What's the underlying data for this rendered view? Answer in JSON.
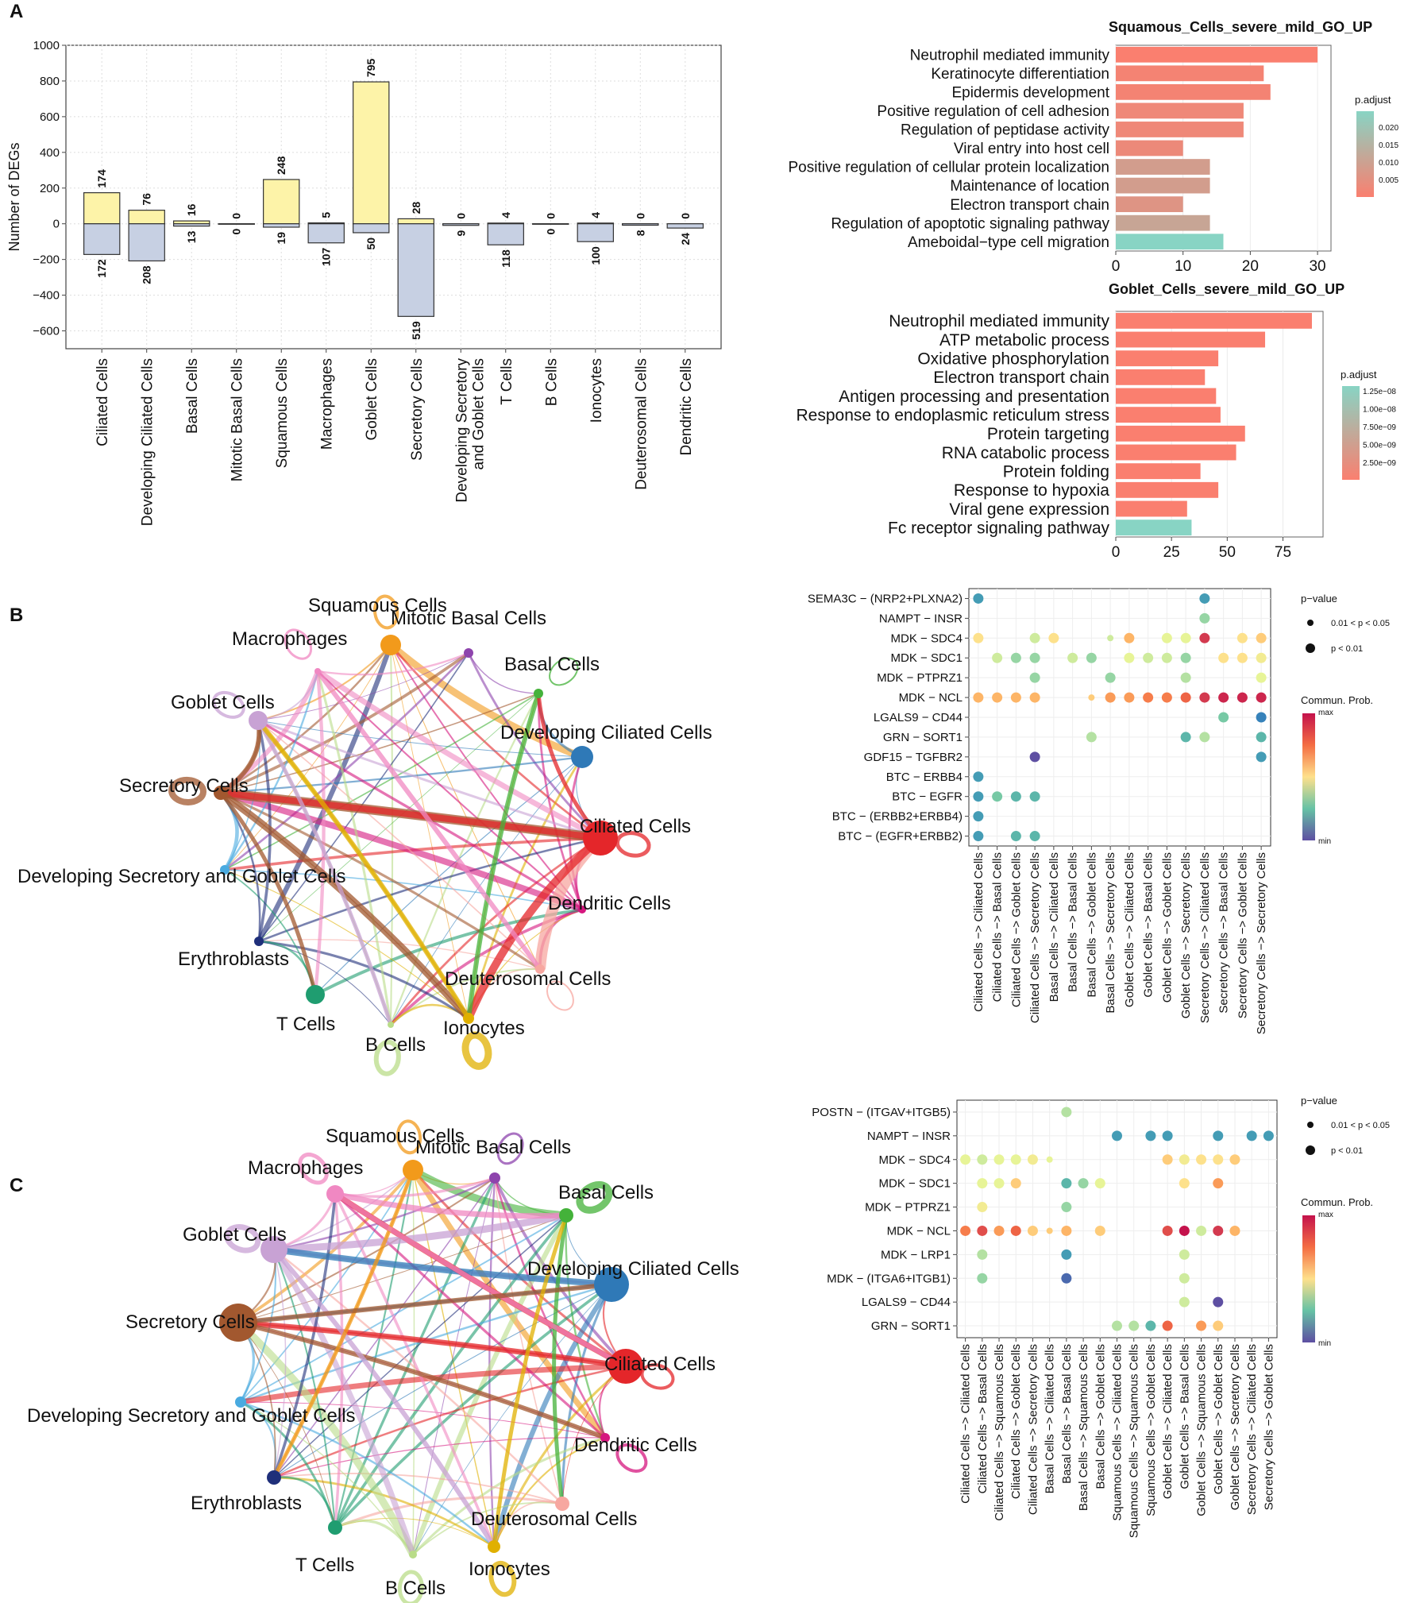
{
  "panels": {
    "A": "A",
    "B": "B",
    "C": "C"
  },
  "colors": {
    "up_fill": "#fdf3a8",
    "down_fill": "#c7d0e3",
    "go_high": "#fa7f6f",
    "go_low": "#88d4c4"
  },
  "chart_data": [
    {
      "type": "bar",
      "id": "degs",
      "title": "",
      "ylabel": "Number of DEGs",
      "ylim": [
        -700,
        1000
      ],
      "yticks": [
        1000,
        800,
        600,
        400,
        200,
        0,
        -200,
        -400,
        -600
      ],
      "ytick_labels": [
        "1000",
        "800",
        "600",
        "400",
        "200",
        "0",
        "−200",
        "−400",
        "−600"
      ],
      "categories": [
        "Ciliated Cells",
        "Developing Ciliated Cells",
        "Basal Cells",
        "Mitotic Basal Cells",
        "Squamous Cells",
        "Macrophages",
        "Goblet Cells",
        "Secretory Cells",
        "Developing Secretory",
        "T Cells",
        "B Cells",
        "Ionocytes",
        "Deuterosomal Cells",
        "Dendritic Cells"
      ],
      "category_line2": [
        "",
        "",
        "",
        "",
        "",
        "",
        "",
        "",
        "and Goblet Cells",
        "",
        "",
        "",
        "",
        ""
      ],
      "series": [
        {
          "name": "up",
          "values": [
            174,
            76,
            16,
            0,
            248,
            5,
            795,
            28,
            0,
            4,
            0,
            4,
            0,
            0
          ]
        },
        {
          "name": "down",
          "values": [
            172,
            208,
            13,
            0,
            19,
            107,
            50,
            519,
            9,
            118,
            0,
            100,
            8,
            24
          ]
        }
      ]
    },
    {
      "type": "bar",
      "id": "go_squamous",
      "orientation": "horizontal",
      "title": "Squamous_Cells_severe_mild_GO_UP",
      "categories": [
        "Neutrophil mediated immunity",
        "Keratinocyte differentiation",
        "Epidermis development",
        "Positive regulation of cell adhesion",
        "Regulation of peptidase activity",
        "Viral entry into host cell",
        "Positive regulation of cellular protein localization",
        "Maintenance of location",
        "Electron transport chain",
        "Regulation of apoptotic signaling pathway",
        "Ameboidal−type cell migration"
      ],
      "values": [
        30,
        22,
        23,
        19,
        19,
        10,
        14,
        14,
        10,
        14,
        16
      ],
      "color_frac": [
        0.0,
        0.05,
        0.05,
        0.1,
        0.1,
        0.12,
        0.35,
        0.35,
        0.25,
        0.45,
        1.0
      ],
      "xlim": [
        0,
        32
      ],
      "xticks": [
        0,
        10,
        20,
        30
      ],
      "legend_title": "p.adjust",
      "legend_ticks": [
        "0.020",
        "0.015",
        "0.010",
        "0.005"
      ]
    },
    {
      "type": "bar",
      "id": "go_goblet",
      "orientation": "horizontal",
      "title": "Goblet_Cells_severe_mild_GO_UP",
      "categories": [
        "Neutrophil mediated immunity",
        "ATP metabolic process",
        "Oxidative phosphorylation",
        "Electron transport chain",
        "Antigen processing and presentation",
        "Response to endoplasmic reticulum stress",
        "Protein targeting",
        "RNA catabolic process",
        "Protein folding",
        "Response to hypoxia",
        "Viral gene expression",
        "Fc receptor signaling pathway"
      ],
      "values": [
        88,
        67,
        46,
        40,
        45,
        47,
        58,
        54,
        38,
        46,
        32,
        34
      ],
      "color_frac": [
        0,
        0,
        0,
        0,
        0,
        0,
        0,
        0,
        0,
        0,
        0,
        1.0
      ],
      "xlim": [
        0,
        93
      ],
      "xticks": [
        0,
        25,
        50,
        75
      ],
      "legend_title": "p.adjust",
      "legend_ticks": [
        "1.25e−08",
        "1.00e−08",
        "7.50e−09",
        "5.00e−09",
        "2.50e−09"
      ]
    },
    {
      "type": "scatter",
      "id": "dot_B",
      "rows": [
        "SEMA3C − (NRP2+PLXNA2)",
        "NAMPT − INSR",
        "MDK − SDC4",
        "MDK − SDC1",
        "MDK − PTPRZ1",
        "MDK − NCL",
        "LGALS9 − CD44",
        "GRN − SORT1",
        "GDF15 − TGFBR2",
        "BTC − ERBB4",
        "BTC − EGFR",
        "BTC − (ERBB2+ERBB4)",
        "BTC − (EGFR+ERBB2)"
      ],
      "columns": [
        "Ciliated Cells −> Ciliated Cells",
        "Ciliated Cells −> Basal Cells",
        "Ciliated Cells −> Goblet Cells",
        "Ciliated Cells −> Secretory Cells",
        "Basal Cells −> Ciliated Cells",
        "Basal Cells −> Basal Cells",
        "Basal Cells −> Goblet Cells",
        "Basal Cells −> Secretory Cells",
        "Goblet Cells −> Ciliated Cells",
        "Goblet Cells −> Basal Cells",
        "Goblet Cells −> Goblet Cells",
        "Goblet Cells −> Secretory Cells",
        "Secretory Cells −> Ciliated Cells",
        "Secretory Cells −> Basal Cells",
        "Secretory Cells −> Goblet Cells",
        "Secretory Cells −> Secretory Cells"
      ],
      "points": [
        [
          0,
          0,
          0.15,
          1
        ],
        [
          0,
          12,
          0.15,
          1
        ],
        [
          1,
          12,
          0.3,
          1
        ],
        [
          2,
          0,
          0.55,
          1
        ],
        [
          2,
          3,
          0.4,
          1
        ],
        [
          2,
          4,
          0.55,
          1
        ],
        [
          2,
          7,
          0.4,
          0
        ],
        [
          2,
          8,
          0.65,
          1
        ],
        [
          2,
          10,
          0.45,
          1
        ],
        [
          2,
          11,
          0.45,
          1
        ],
        [
          2,
          12,
          0.9,
          1
        ],
        [
          2,
          14,
          0.55,
          1
        ],
        [
          2,
          15,
          0.6,
          1
        ],
        [
          3,
          1,
          0.4,
          1
        ],
        [
          3,
          2,
          0.3,
          1
        ],
        [
          3,
          3,
          0.3,
          1
        ],
        [
          3,
          5,
          0.4,
          1
        ],
        [
          3,
          6,
          0.3,
          1
        ],
        [
          3,
          8,
          0.45,
          1
        ],
        [
          3,
          9,
          0.4,
          1
        ],
        [
          3,
          10,
          0.4,
          1
        ],
        [
          3,
          11,
          0.3,
          1
        ],
        [
          3,
          13,
          0.55,
          1
        ],
        [
          3,
          14,
          0.55,
          1
        ],
        [
          3,
          15,
          0.5,
          1
        ],
        [
          4,
          3,
          0.3,
          1
        ],
        [
          4,
          7,
          0.3,
          1
        ],
        [
          4,
          11,
          0.35,
          1
        ],
        [
          4,
          15,
          0.45,
          1
        ],
        [
          5,
          0,
          0.65,
          1
        ],
        [
          5,
          1,
          0.65,
          1
        ],
        [
          5,
          2,
          0.65,
          1
        ],
        [
          5,
          3,
          0.65,
          1
        ],
        [
          5,
          6,
          0.6,
          0
        ],
        [
          5,
          7,
          0.7,
          1
        ],
        [
          5,
          8,
          0.7,
          1
        ],
        [
          5,
          9,
          0.75,
          1
        ],
        [
          5,
          10,
          0.75,
          1
        ],
        [
          5,
          11,
          0.8,
          1
        ],
        [
          5,
          12,
          0.9,
          1
        ],
        [
          5,
          13,
          0.95,
          1
        ],
        [
          5,
          14,
          0.95,
          1
        ],
        [
          5,
          15,
          0.95,
          1
        ],
        [
          6,
          13,
          0.25,
          1
        ],
        [
          6,
          15,
          0.1,
          1
        ],
        [
          7,
          6,
          0.35,
          1
        ],
        [
          7,
          11,
          0.2,
          1
        ],
        [
          7,
          12,
          0.35,
          1
        ],
        [
          7,
          15,
          0.2,
          1
        ],
        [
          8,
          3,
          0.0,
          1
        ],
        [
          8,
          15,
          0.15,
          1
        ],
        [
          9,
          0,
          0.15,
          1
        ],
        [
          10,
          0,
          0.15,
          1
        ],
        [
          10,
          1,
          0.25,
          1
        ],
        [
          10,
          2,
          0.2,
          1
        ],
        [
          10,
          3,
          0.2,
          1
        ],
        [
          11,
          0,
          0.15,
          1
        ],
        [
          12,
          0,
          0.15,
          1
        ],
        [
          12,
          2,
          0.2,
          1
        ],
        [
          12,
          3,
          0.2,
          1
        ]
      ],
      "legend_pvalue_title": "p−value",
      "legend_pvalue": [
        "0.01 < p < 0.05",
        "p < 0.01"
      ],
      "legend_prob_title": "Commun. Prob.",
      "legend_prob": [
        "max",
        "min"
      ]
    },
    {
      "type": "scatter",
      "id": "dot_C",
      "rows": [
        "POSTN − (ITGAV+ITGB5)",
        "NAMPT − INSR",
        "MDK − SDC4",
        "MDK − SDC1",
        "MDK − PTPRZ1",
        "MDK − NCL",
        "MDK − LRP1",
        "MDK − (ITGA6+ITGB1)",
        "LGALS9 − CD44",
        "GRN − SORT1"
      ],
      "columns": [
        "Ciliated Cells −> Ciliated Cells",
        "Ciliated Cells −> Basal Cells",
        "Ciliated Cells −> Squamous Cells",
        "Ciliated Cells −> Goblet Cells",
        "Ciliated Cells −> Secretory Cells",
        "Basal Cells −> Ciliated Cells",
        "Basal Cells −> Basal Cells",
        "Basal Cells −> Squamous Cells",
        "Basal Cells −> Goblet Cells",
        "Squamous Cells −> Ciliated Cells",
        "Squamous Cells −> Squamous Cells",
        "Squamous Cells −> Goblet Cells",
        "Goblet Cells −> Ciliated Cells",
        "Goblet Cells −> Basal Cells",
        "Goblet Cells −> Squamous Cells",
        "Goblet Cells −> Goblet Cells",
        "Goblet Cells −> Secretory Cells",
        "Secretory Cells −> Ciliated Cells",
        "Secretory Cells −> Goblet Cells"
      ],
      "points": [
        [
          0,
          6,
          0.35,
          1
        ],
        [
          1,
          9,
          0.15,
          1
        ],
        [
          1,
          11,
          0.15,
          1
        ],
        [
          1,
          12,
          0.15,
          1
        ],
        [
          1,
          15,
          0.15,
          1
        ],
        [
          1,
          17,
          0.15,
          1
        ],
        [
          1,
          18,
          0.15,
          1
        ],
        [
          2,
          0,
          0.45,
          1
        ],
        [
          2,
          1,
          0.4,
          1
        ],
        [
          2,
          2,
          0.45,
          1
        ],
        [
          2,
          3,
          0.45,
          1
        ],
        [
          2,
          4,
          0.5,
          1
        ],
        [
          2,
          5,
          0.45,
          0
        ],
        [
          2,
          12,
          0.6,
          1
        ],
        [
          2,
          13,
          0.5,
          1
        ],
        [
          2,
          14,
          0.55,
          1
        ],
        [
          2,
          15,
          0.55,
          1
        ],
        [
          2,
          16,
          0.6,
          1
        ],
        [
          3,
          1,
          0.45,
          1
        ],
        [
          3,
          2,
          0.45,
          1
        ],
        [
          3,
          3,
          0.6,
          1
        ],
        [
          3,
          6,
          0.2,
          1
        ],
        [
          3,
          7,
          0.3,
          1
        ],
        [
          3,
          8,
          0.45,
          1
        ],
        [
          3,
          13,
          0.55,
          1
        ],
        [
          3,
          15,
          0.7,
          1
        ],
        [
          4,
          1,
          0.5,
          1
        ],
        [
          4,
          6,
          0.3,
          1
        ],
        [
          5,
          0,
          0.75,
          1
        ],
        [
          5,
          1,
          0.85,
          1
        ],
        [
          5,
          2,
          0.7,
          1
        ],
        [
          5,
          3,
          0.8,
          1
        ],
        [
          5,
          4,
          0.6,
          1
        ],
        [
          5,
          5,
          0.6,
          0
        ],
        [
          5,
          6,
          0.65,
          1
        ],
        [
          5,
          8,
          0.6,
          1
        ],
        [
          5,
          12,
          0.85,
          1
        ],
        [
          5,
          13,
          1.0,
          1
        ],
        [
          5,
          14,
          0.4,
          1
        ],
        [
          5,
          15,
          0.9,
          1
        ],
        [
          5,
          16,
          0.65,
          1
        ],
        [
          6,
          1,
          0.35,
          1
        ],
        [
          6,
          6,
          0.15,
          1
        ],
        [
          6,
          13,
          0.4,
          1
        ],
        [
          7,
          1,
          0.3,
          1
        ],
        [
          7,
          6,
          0.05,
          1
        ],
        [
          7,
          13,
          0.4,
          1
        ],
        [
          8,
          13,
          0.4,
          1
        ],
        [
          8,
          15,
          0.0,
          1
        ],
        [
          9,
          9,
          0.35,
          1
        ],
        [
          9,
          10,
          0.35,
          1
        ],
        [
          9,
          11,
          0.2,
          1
        ],
        [
          9,
          12,
          0.8,
          1
        ],
        [
          9,
          14,
          0.7,
          1
        ],
        [
          9,
          15,
          0.6,
          1
        ]
      ],
      "legend_pvalue_title": "p−value",
      "legend_pvalue": [
        "0.01 < p < 0.05",
        "p < 0.01"
      ],
      "legend_prob_title": "Commun. Prob.",
      "legend_prob": [
        "max",
        "min"
      ]
    },
    {
      "type": "network",
      "id": "net_B",
      "nodes": [
        {
          "name": "Squamous Cells",
          "color": "#f29a1b",
          "size": 13
        },
        {
          "name": "Mitotic Basal Cells",
          "color": "#8e44ad",
          "size": 6
        },
        {
          "name": "Basal Cells",
          "color": "#44b23a",
          "size": 6
        },
        {
          "name": "Developing Ciliated Cells",
          "color": "#2f79b7",
          "size": 14
        },
        {
          "name": "Ciliated Cells",
          "color": "#e4262a",
          "size": 22
        },
        {
          "name": "Dendritic Cells",
          "color": "#d6177f",
          "size": 5
        },
        {
          "name": "Deuterosomal Cells",
          "color": "#f7a7a0",
          "size": 6
        },
        {
          "name": "Ionocytes",
          "color": "#e0b000",
          "size": 7
        },
        {
          "name": "B Cells",
          "color": "#b9dc88",
          "size": 4
        },
        {
          "name": "T Cells",
          "color": "#1f9d70",
          "size": 12
        },
        {
          "name": "Erythroblasts",
          "color": "#1f2f7a",
          "size": 6
        },
        {
          "name": "Developing Secretory and Goblet Cells",
          "color": "#49aae0",
          "size": 6
        },
        {
          "name": "Secretory Cells",
          "color": "#a2582f",
          "size": 9
        },
        {
          "name": "Goblet Cells",
          "color": "#c8a2d4",
          "size": 12
        },
        {
          "name": "Macrophages",
          "color": "#f088c2",
          "size": 4
        }
      ]
    },
    {
      "type": "network",
      "id": "net_C",
      "nodes": [
        {
          "name": "Squamous Cells",
          "color": "#f29a1b",
          "size": 13
        },
        {
          "name": "Mitotic Basal Cells",
          "color": "#8e44ad",
          "size": 7
        },
        {
          "name": "Basal Cells",
          "color": "#44b23a",
          "size": 9
        },
        {
          "name": "Developing Ciliated Cells",
          "color": "#2f79b7",
          "size": 22
        },
        {
          "name": "Ciliated Cells",
          "color": "#e4262a",
          "size": 22
        },
        {
          "name": "Dendritic Cells",
          "color": "#d6177f",
          "size": 6
        },
        {
          "name": "Deuterosomal Cells",
          "color": "#f7a7a0",
          "size": 9
        },
        {
          "name": "Ionocytes",
          "color": "#e0b000",
          "size": 8
        },
        {
          "name": "B Cells",
          "color": "#b9dc88",
          "size": 5
        },
        {
          "name": "T Cells",
          "color": "#1f9d70",
          "size": 9
        },
        {
          "name": "Erythroblasts",
          "color": "#1f2f7a",
          "size": 9
        },
        {
          "name": "Developing Secretory and Goblet Cells",
          "color": "#49aae0",
          "size": 7
        },
        {
          "name": "Secretory Cells",
          "color": "#a2582f",
          "size": 24
        },
        {
          "name": "Goblet Cells",
          "color": "#c8a2d4",
          "size": 17
        },
        {
          "name": "Macrophages",
          "color": "#f088c2",
          "size": 11
        }
      ]
    }
  ]
}
